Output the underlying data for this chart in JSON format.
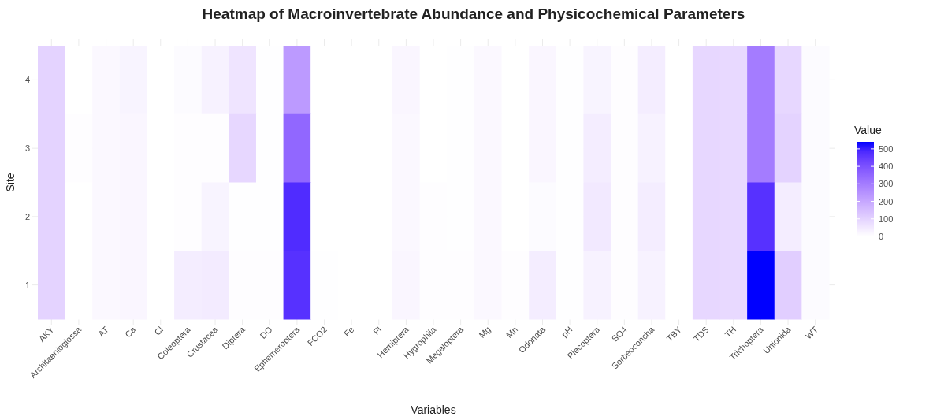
{
  "chart_data": {
    "type": "heatmap",
    "title": "Heatmap of Macroinvertebrate Abundance and Physicochemical Parameters",
    "xlabel": "Variables",
    "ylabel": "Site",
    "legend_title": "Value",
    "categories": [
      "AKY",
      "Architaenioglossa",
      "AT",
      "Ca",
      "Cl",
      "Coleoptera",
      "Crustacea",
      "Diptera",
      "DO",
      "Ephemeroptera",
      "FCO2",
      "Fe",
      "Fl",
      "Hemiptera",
      "Hygrophila",
      "Megaloptera",
      "Mg",
      "Mn",
      "Odonata",
      "pH",
      "Plecoptera",
      "SO4",
      "Sorbeoconcha",
      "TBY",
      "TDS",
      "TH",
      "Trichoptera",
      "Unionida",
      "WT"
    ],
    "y_categories": [
      "4",
      "3",
      "2",
      "1"
    ],
    "cells": [
      [
        100,
        0,
        15,
        25,
        0,
        10,
        30,
        60,
        2,
        230,
        0,
        0,
        0,
        20,
        0,
        3,
        15,
        0,
        20,
        3,
        25,
        5,
        40,
        0,
        90,
        85,
        300,
        90,
        10
      ],
      [
        100,
        5,
        15,
        20,
        0,
        5,
        5,
        90,
        2,
        350,
        0,
        0,
        0,
        15,
        0,
        3,
        15,
        0,
        20,
        3,
        40,
        5,
        30,
        0,
        90,
        85,
        300,
        100,
        10
      ],
      [
        100,
        0,
        15,
        20,
        0,
        5,
        25,
        2,
        2,
        480,
        0,
        0,
        0,
        15,
        5,
        3,
        15,
        0,
        10,
        3,
        50,
        5,
        40,
        0,
        90,
        85,
        470,
        40,
        10
      ],
      [
        100,
        0,
        15,
        20,
        0,
        40,
        45,
        5,
        5,
        470,
        2,
        0,
        0,
        20,
        5,
        5,
        15,
        5,
        40,
        3,
        30,
        5,
        30,
        0,
        90,
        85,
        540,
        110,
        10
      ]
    ],
    "clim": [
      0,
      540
    ],
    "cticks": [
      0,
      100,
      200,
      300,
      400,
      500
    ],
    "colors": [
      "#ffffff",
      "#0000ff"
    ],
    "grid": true
  }
}
